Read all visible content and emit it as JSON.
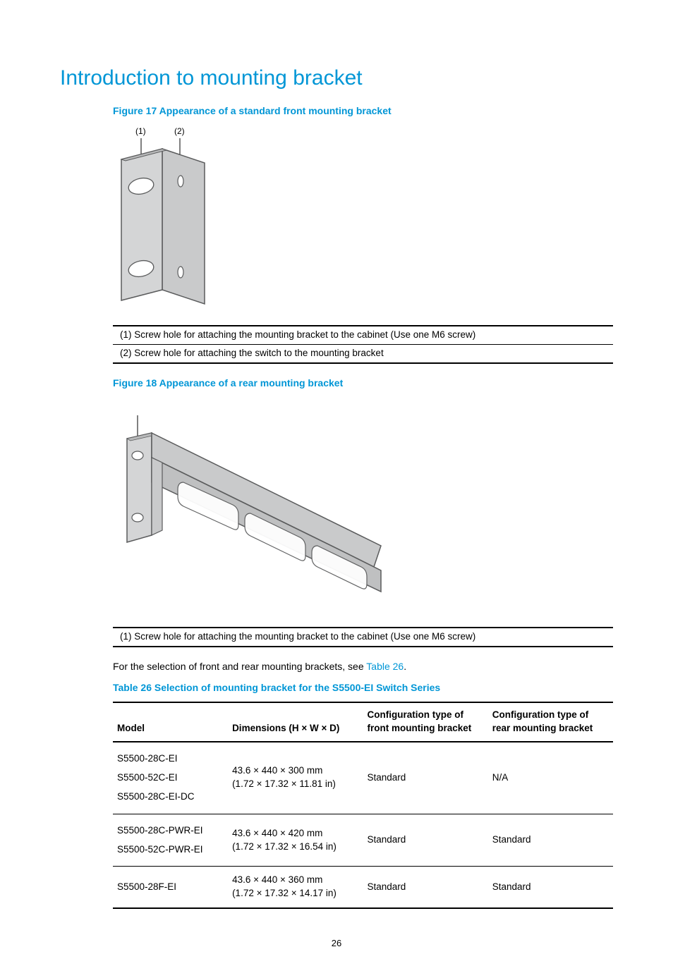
{
  "title": "Introduction to mounting bracket",
  "figure17": {
    "caption": "Figure 17 Appearance of a standard front mounting bracket",
    "label1": "(1)",
    "label2": "(2)",
    "callouts": [
      "(1) Screw hole for attaching the mounting bracket to the cabinet (Use one M6 screw)",
      "(2) Screw hole for attaching the switch to the mounting bracket"
    ]
  },
  "figure18": {
    "caption": "Figure 18 Appearance of a rear mounting bracket",
    "callouts": [
      "(1) Screw hole for attaching the mounting bracket to the cabinet (Use one M6 screw)"
    ]
  },
  "body_text_pre": "For the selection of front and rear mounting brackets, see ",
  "body_text_link": "Table 26",
  "body_text_post": ".",
  "table26": {
    "caption": "Table 26 Selection of mounting bracket for the S5500-EI Switch Series",
    "headers": {
      "model": "Model",
      "dimensions": "Dimensions (H × W × D)",
      "front": "Configuration type of front mounting bracket",
      "rear": "Configuration type of rear mounting bracket"
    },
    "rows": [
      {
        "models": [
          "S5500-28C-EI",
          "S5500-52C-EI",
          "S5500-28C-EI-DC"
        ],
        "dim_mm": "43.6 × 440 × 300 mm",
        "dim_in": "(1.72 × 17.32 × 11.81 in)",
        "front": "Standard",
        "rear": "N/A"
      },
      {
        "models": [
          "S5500-28C-PWR-EI",
          "S5500-52C-PWR-EI"
        ],
        "dim_mm": "43.6 × 440 × 420 mm",
        "dim_in": "(1.72 × 17.32 × 16.54 in)",
        "front": "Standard",
        "rear": "Standard"
      },
      {
        "models": [
          "S5500-28F-EI"
        ],
        "dim_mm": "43.6 × 440 × 360 mm",
        "dim_in": "(1.72 × 17.32 × 14.17 in)",
        "front": "Standard",
        "rear": "Standard"
      }
    ]
  },
  "page_number": "26",
  "colors": {
    "accent": "#0096d6",
    "bracket_fill": "#c9cacb",
    "bracket_stroke": "#5a5b5c"
  }
}
